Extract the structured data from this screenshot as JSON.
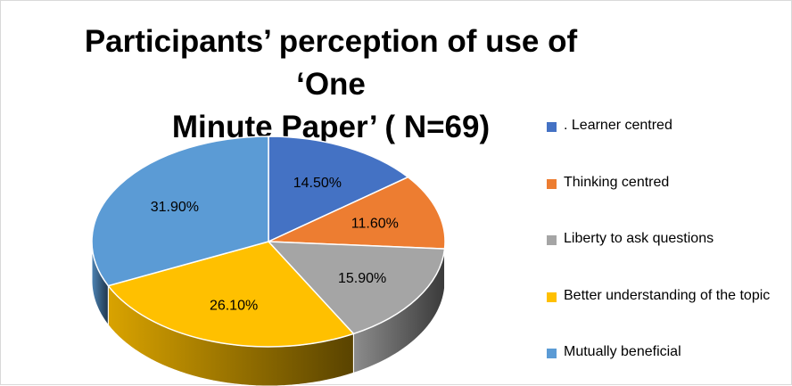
{
  "chart_data": {
    "type": "pie",
    "title": "Participants’ perception of use of ‘One Minute Paper’ ( N=69)",
    "title_lines": [
      "Participants’ perception of use of ‘One",
      "Minute Paper’ ( N=69)"
    ],
    "style": "3d-tilted",
    "legend_position": "right",
    "slices": [
      {
        "label": ". Learner centred",
        "value": 14.5,
        "value_label": "14.50%",
        "color": "#4472C4"
      },
      {
        "label": "Thinking centred",
        "value": 11.6,
        "value_label": "11.60%",
        "color": "#ED7D31"
      },
      {
        "label": "Liberty to ask questions",
        "value": 15.9,
        "value_label": "15.90%",
        "color": "#A5A5A5"
      },
      {
        "label": "Better understanding of the topic",
        "value": 26.1,
        "value_label": "26.10%",
        "color": "#FFC000"
      },
      {
        "label": "Mutually beneficial",
        "value": 31.9,
        "value_label": "31.90%",
        "color": "#5B9BD5"
      }
    ]
  }
}
